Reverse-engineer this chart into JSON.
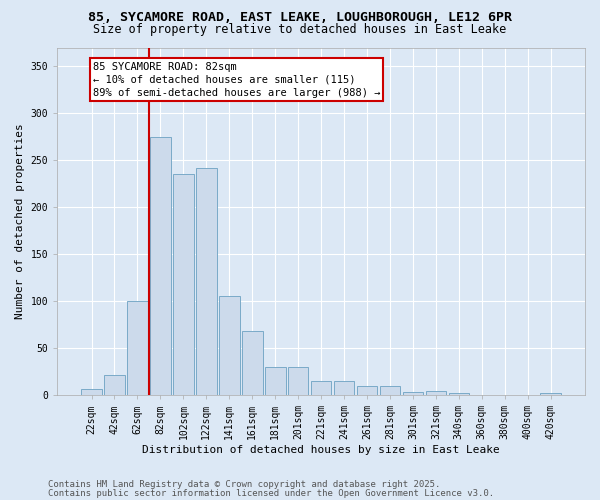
{
  "title_line1": "85, SYCAMORE ROAD, EAST LEAKE, LOUGHBOROUGH, LE12 6PR",
  "title_line2": "Size of property relative to detached houses in East Leake",
  "xlabel": "Distribution of detached houses by size in East Leake",
  "ylabel": "Number of detached properties",
  "bar_color": "#ccdaeb",
  "bar_edge_color": "#7aaac8",
  "highlight_color": "#cc0000",
  "background_color": "#dce8f5",
  "categories": [
    "22sqm",
    "42sqm",
    "62sqm",
    "82sqm",
    "102sqm",
    "122sqm",
    "141sqm",
    "161sqm",
    "181sqm",
    "201sqm",
    "221sqm",
    "241sqm",
    "261sqm",
    "281sqm",
    "301sqm",
    "321sqm",
    "340sqm",
    "360sqm",
    "380sqm",
    "400sqm",
    "420sqm"
  ],
  "values": [
    7,
    21,
    100,
    275,
    235,
    242,
    106,
    68,
    30,
    30,
    15,
    15,
    10,
    10,
    3,
    4,
    2,
    0,
    0,
    0,
    2
  ],
  "highlight_line_bar_index": 3,
  "annotation_text": "85 SYCAMORE ROAD: 82sqm\n← 10% of detached houses are smaller (115)\n89% of semi-detached houses are larger (988) →",
  "ylim": [
    0,
    370
  ],
  "yticks": [
    0,
    50,
    100,
    150,
    200,
    250,
    300,
    350
  ],
  "footer_line1": "Contains HM Land Registry data © Crown copyright and database right 2025.",
  "footer_line2": "Contains public sector information licensed under the Open Government Licence v3.0.",
  "title_fontsize": 9.5,
  "subtitle_fontsize": 8.5,
  "axis_label_fontsize": 8,
  "tick_fontsize": 7,
  "annotation_fontsize": 7.5,
  "footer_fontsize": 6.5
}
